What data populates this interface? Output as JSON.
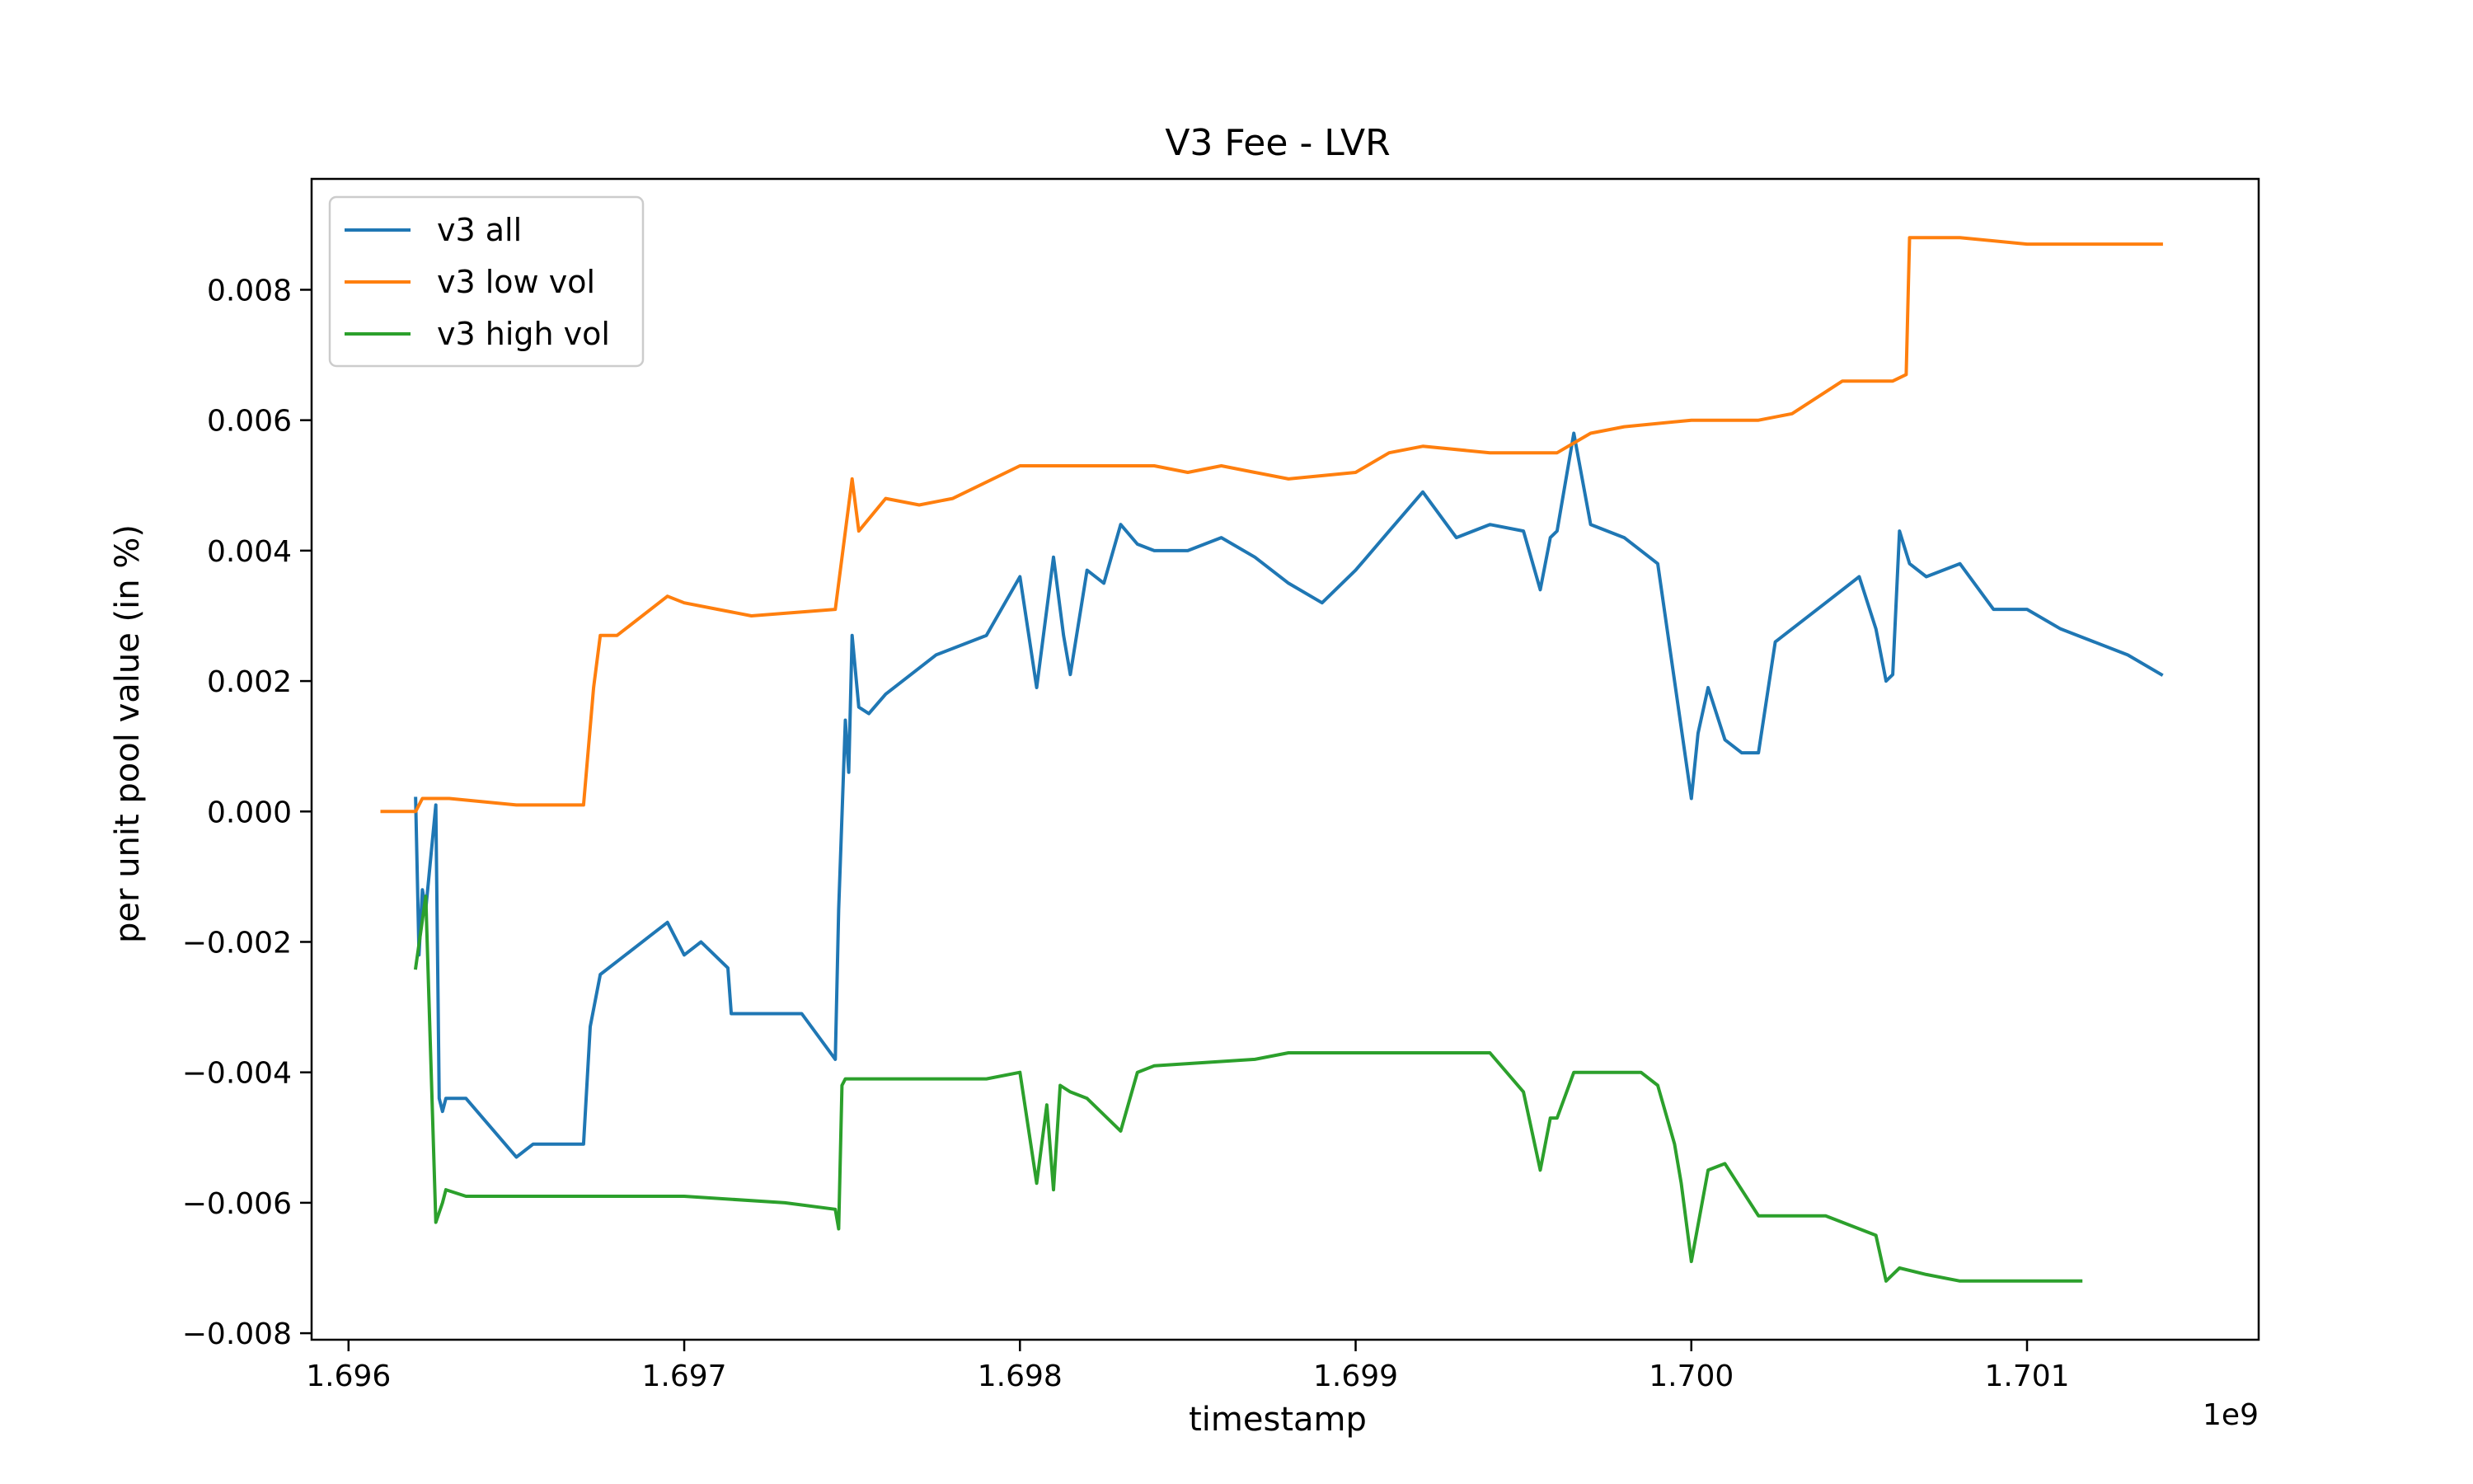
{
  "chart_data": {
    "type": "line",
    "title": "V3 Fee - LVR",
    "xlabel": "timestamp",
    "ylabel": "per unit pool value (in %)",
    "x_offset_label": "1e9",
    "xlim": [
      1.69589,
      1.70169
    ],
    "ylim": [
      -0.0081,
      0.0097
    ],
    "xticks": [
      1.696,
      1.697,
      1.698,
      1.699,
      1.7,
      1.701
    ],
    "xtick_labels": [
      "1.696",
      "1.697",
      "1.698",
      "1.699",
      "1.700",
      "1.701"
    ],
    "yticks": [
      -0.008,
      -0.006,
      -0.004,
      -0.002,
      0.0,
      0.002,
      0.004,
      0.006,
      0.008
    ],
    "ytick_labels": [
      "−0.008",
      "−0.006",
      "−0.004",
      "−0.002",
      "0.000",
      "0.002",
      "0.004",
      "0.006",
      "0.008"
    ],
    "grid": false,
    "legend_position": "top-left",
    "series": [
      {
        "name": "v3 all",
        "color": "#1f77b4",
        "x": [
          1.6962,
          1.69621,
          1.69622,
          1.69623,
          1.69626,
          1.69627,
          1.69628,
          1.69629,
          1.69635,
          1.6965,
          1.69655,
          1.6967,
          1.69672,
          1.69675,
          1.6968,
          1.6969,
          1.69695,
          1.697,
          1.69705,
          1.69713,
          1.69714,
          1.69725,
          1.69735,
          1.69745,
          1.69746,
          1.69748,
          1.69749,
          1.6975,
          1.69752,
          1.69755,
          1.6976,
          1.69775,
          1.6979,
          1.698,
          1.69805,
          1.6981,
          1.69813,
          1.69815,
          1.6982,
          1.69825,
          1.6983,
          1.69835,
          1.6984,
          1.6985,
          1.6986,
          1.6987,
          1.6988,
          1.6989,
          1.699,
          1.6991,
          1.6992,
          1.6993,
          1.6994,
          1.6995,
          1.69955,
          1.69958,
          1.6996,
          1.69965,
          1.6997,
          1.6998,
          1.6999,
          1.7,
          1.70002,
          1.70005,
          1.7001,
          1.70015,
          1.7002,
          1.70025,
          1.7003,
          1.7004,
          1.7005,
          1.70055,
          1.70058,
          1.7006,
          1.70062,
          1.70065,
          1.7007,
          1.7008,
          1.7009,
          1.701,
          1.7011,
          1.7012,
          1.7013,
          1.7014
        ],
        "y": [
          0.0002,
          -0.0022,
          -0.0012,
          -0.0015,
          0.0001,
          -0.0044,
          -0.0046,
          -0.0044,
          -0.0044,
          -0.0053,
          -0.0051,
          -0.0051,
          -0.0033,
          -0.0025,
          -0.0023,
          -0.0019,
          -0.0017,
          -0.0022,
          -0.002,
          -0.0024,
          -0.0031,
          -0.0031,
          -0.0031,
          -0.0038,
          -0.0015,
          0.0014,
          0.0006,
          0.0027,
          0.0016,
          0.0015,
          0.0018,
          0.0024,
          0.0027,
          0.0036,
          0.0019,
          0.0039,
          0.0027,
          0.0021,
          0.0037,
          0.0035,
          0.0044,
          0.0041,
          0.004,
          0.004,
          0.0042,
          0.0039,
          0.0035,
          0.0032,
          0.0037,
          0.0043,
          0.0049,
          0.0042,
          0.0044,
          0.0043,
          0.0034,
          0.0042,
          0.0043,
          0.0058,
          0.0044,
          0.0042,
          0.0038,
          0.0002,
          0.0012,
          0.0019,
          0.0011,
          0.0009,
          0.0009,
          0.0026,
          0.0028,
          0.0032,
          0.0036,
          0.0028,
          0.002,
          0.0021,
          0.0043,
          0.0038,
          0.0036,
          0.0038,
          0.0031,
          0.0031,
          0.0028,
          0.0026,
          0.0024,
          0.0021
        ]
      },
      {
        "name": "v3 low vol",
        "color": "#ff7f0e",
        "x": [
          1.6961,
          1.6962,
          1.69622,
          1.6963,
          1.6965,
          1.6967,
          1.69673,
          1.69675,
          1.6968,
          1.6969,
          1.69695,
          1.697,
          1.6971,
          1.6972,
          1.69745,
          1.6975,
          1.69752,
          1.6976,
          1.6977,
          1.6978,
          1.698,
          1.6982,
          1.6984,
          1.6985,
          1.6986,
          1.6987,
          1.6988,
          1.699,
          1.6991,
          1.6992,
          1.6994,
          1.6996,
          1.6997,
          1.6998,
          1.7,
          1.7002,
          1.7003,
          1.70045,
          1.7006,
          1.70064,
          1.70065,
          1.7008,
          1.701,
          1.7012,
          1.7014
        ],
        "y": [
          0.0,
          0.0,
          0.0002,
          0.0002,
          0.0001,
          0.0001,
          0.0019,
          0.0027,
          0.0027,
          0.0031,
          0.0033,
          0.0032,
          0.0031,
          0.003,
          0.0031,
          0.0051,
          0.0043,
          0.0048,
          0.0047,
          0.0048,
          0.0053,
          0.0053,
          0.0053,
          0.0052,
          0.0053,
          0.0052,
          0.0051,
          0.0052,
          0.0055,
          0.0056,
          0.0055,
          0.0055,
          0.0058,
          0.0059,
          0.006,
          0.006,
          0.0061,
          0.0066,
          0.0066,
          0.0067,
          0.0088,
          0.0088,
          0.0087,
          0.0087,
          0.0087
        ]
      },
      {
        "name": "v3 high vol",
        "color": "#2ca02c",
        "x": [
          1.6962,
          1.69623,
          1.69626,
          1.69628,
          1.69629,
          1.69635,
          1.697,
          1.6973,
          1.69745,
          1.69746,
          1.69747,
          1.69748,
          1.6975,
          1.6979,
          1.698,
          1.69805,
          1.69808,
          1.6981,
          1.69812,
          1.69815,
          1.6982,
          1.6983,
          1.69835,
          1.6984,
          1.6987,
          1.6988,
          1.699,
          1.6994,
          1.6995,
          1.69955,
          1.69958,
          1.6996,
          1.69965,
          1.69975,
          1.69985,
          1.6999,
          1.69995,
          1.69997,
          1.7,
          1.70005,
          1.7001,
          1.7002,
          1.7003,
          1.7004,
          1.70055,
          1.70058,
          1.7006,
          1.70062,
          1.7007,
          1.7008,
          1.701,
          1.70116
        ],
        "y": [
          -0.0024,
          -0.0013,
          -0.0063,
          -0.006,
          -0.0058,
          -0.0059,
          -0.0059,
          -0.006,
          -0.0061,
          -0.0064,
          -0.0042,
          -0.0041,
          -0.0041,
          -0.0041,
          -0.004,
          -0.0057,
          -0.0045,
          -0.0058,
          -0.0042,
          -0.0043,
          -0.0044,
          -0.0049,
          -0.004,
          -0.0039,
          -0.0038,
          -0.0037,
          -0.0037,
          -0.0037,
          -0.0043,
          -0.0055,
          -0.0047,
          -0.0047,
          -0.004,
          -0.004,
          -0.004,
          -0.0042,
          -0.0051,
          -0.0057,
          -0.0069,
          -0.0055,
          -0.0054,
          -0.0062,
          -0.0062,
          -0.0062,
          -0.0065,
          -0.0072,
          -0.0071,
          -0.007,
          -0.0071,
          -0.0072,
          -0.0072,
          -0.0072
        ]
      }
    ]
  }
}
